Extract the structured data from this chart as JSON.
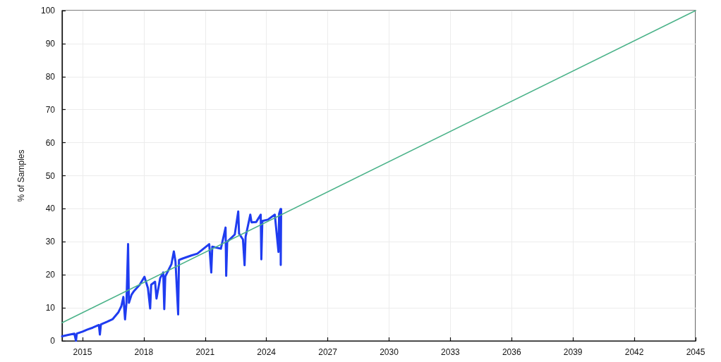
{
  "chart_data": {
    "type": "line",
    "ylabel": "% of Samples",
    "xlim": [
      2014,
      2045
    ],
    "xticks": [
      2015,
      2018,
      2021,
      2024,
      2027,
      2030,
      2033,
      2036,
      2039,
      2042,
      2045
    ],
    "ylim": [
      0,
      100
    ],
    "yticks": [
      0,
      10,
      20,
      30,
      40,
      50,
      60,
      70,
      80,
      90,
      100
    ],
    "grid": true,
    "marker": "none",
    "line_style": "solid",
    "series": [
      {
        "color": "#1f3cf0",
        "x": [
          2014.0,
          2014.3,
          2014.6,
          2014.68,
          2014.72,
          2015.0,
          2015.22,
          2015.5,
          2015.8,
          2015.85,
          2015.9,
          2016.2,
          2016.48,
          2016.76,
          2016.9,
          2017.0,
          2017.08,
          2017.15,
          2017.23,
          2017.27,
          2017.4,
          2017.52,
          2017.8,
          2018.03,
          2018.2,
          2018.31,
          2018.36,
          2018.55,
          2018.62,
          2018.8,
          2018.95,
          2019.0,
          2019.05,
          2019.35,
          2019.47,
          2019.55,
          2019.68,
          2019.72,
          2019.93,
          2020.3,
          2020.62,
          2020.9,
          2021.2,
          2021.3,
          2021.35,
          2021.77,
          2022.0,
          2022.03,
          2022.08,
          2022.45,
          2022.62,
          2022.66,
          2022.85,
          2022.93,
          2022.98,
          2023.21,
          2023.27,
          2023.5,
          2023.72,
          2023.75,
          2023.8,
          2024.07,
          2024.41,
          2024.59,
          2024.62,
          2024.69,
          2024.7,
          2024.72
        ],
        "values": [
          1.4,
          1.8,
          2.2,
          0.0,
          2.2,
          2.8,
          3.4,
          4.0,
          4.8,
          1.9,
          5.0,
          5.8,
          6.6,
          8.7,
          10.5,
          13.3,
          6.5,
          11.5,
          29.3,
          11.5,
          14.0,
          15.1,
          17.0,
          19.4,
          16.0,
          9.8,
          17.0,
          17.9,
          12.8,
          19.0,
          20.7,
          9.6,
          19.5,
          23.2,
          27.1,
          24.0,
          8.0,
          24.5,
          25.0,
          25.8,
          26.4,
          27.8,
          29.3,
          20.7,
          28.5,
          27.9,
          34.3,
          19.7,
          30.0,
          32.2,
          39.2,
          32.5,
          30.7,
          22.9,
          31.5,
          38.2,
          35.9,
          36.0,
          38.2,
          24.7,
          36.3,
          36.7,
          38.2,
          26.9,
          38.5,
          39.9,
          23.0,
          39.9
        ]
      },
      {
        "color": "#4cb38a",
        "x": [
          2014,
          2045
        ],
        "values": [
          5.5,
          100
        ]
      }
    ]
  }
}
